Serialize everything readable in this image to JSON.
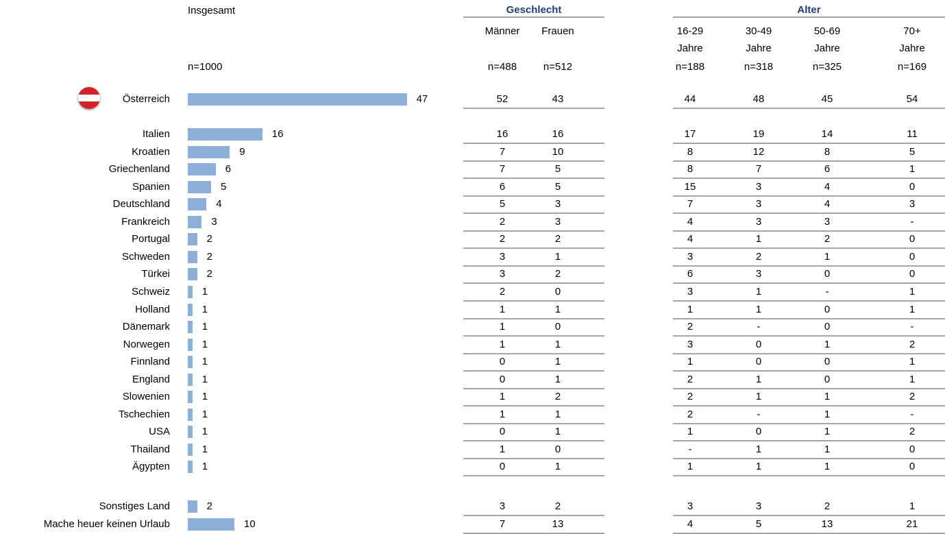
{
  "chart_data": {
    "type": "table",
    "overall": {
      "header": "Insgesamt",
      "n": "n=1000"
    },
    "groups": [
      {
        "title": "Geschlecht",
        "columns": [
          {
            "label": [
              "Männer"
            ],
            "n": "n=488"
          },
          {
            "label": [
              "Frauen"
            ],
            "n": "n=512"
          }
        ]
      },
      {
        "title": "Alter",
        "columns": [
          {
            "label": [
              "16-29",
              "Jahre"
            ],
            "n": "n=188"
          },
          {
            "label": [
              "30-49",
              "Jahre"
            ],
            "n": "n=318"
          },
          {
            "label": [
              "50-69",
              "Jahre"
            ],
            "n": "n=325"
          },
          {
            "label": [
              "70+",
              "Jahre"
            ],
            "n": "n=169"
          }
        ]
      }
    ],
    "rows": [
      {
        "label": "Österreich",
        "total": 47,
        "cells": [
          "52",
          "43",
          "44",
          "48",
          "45",
          "54"
        ],
        "flag": "austria-flag-icon"
      },
      {
        "label": "Italien",
        "total": 16,
        "cells": [
          "16",
          "16",
          "17",
          "19",
          "14",
          "11"
        ]
      },
      {
        "label": "Kroatien",
        "total": 9,
        "cells": [
          "7",
          "10",
          "8",
          "12",
          "8",
          "5"
        ]
      },
      {
        "label": "Griechenland",
        "total": 6,
        "cells": [
          "7",
          "5",
          "8",
          "7",
          "6",
          "1"
        ]
      },
      {
        "label": "Spanien",
        "total": 5,
        "cells": [
          "6",
          "5",
          "15",
          "3",
          "4",
          "0"
        ]
      },
      {
        "label": "Deutschland",
        "total": 4,
        "cells": [
          "5",
          "3",
          "7",
          "3",
          "4",
          "3"
        ]
      },
      {
        "label": "Frankreich",
        "total": 3,
        "cells": [
          "2",
          "3",
          "4",
          "3",
          "3",
          "-"
        ]
      },
      {
        "label": "Portugal",
        "total": 2,
        "cells": [
          "2",
          "2",
          "4",
          "1",
          "2",
          "0"
        ]
      },
      {
        "label": "Schweden",
        "total": 2,
        "cells": [
          "3",
          "1",
          "3",
          "2",
          "1",
          "0"
        ]
      },
      {
        "label": "Türkei",
        "total": 2,
        "cells": [
          "3",
          "2",
          "6",
          "3",
          "0",
          "0"
        ]
      },
      {
        "label": "Schweiz",
        "total": 1,
        "cells": [
          "2",
          "0",
          "3",
          "1",
          "-",
          "1"
        ]
      },
      {
        "label": "Holland",
        "total": 1,
        "cells": [
          "1",
          "1",
          "1",
          "1",
          "0",
          "1"
        ]
      },
      {
        "label": "Dänemark",
        "total": 1,
        "cells": [
          "1",
          "0",
          "2",
          "-",
          "0",
          "-"
        ]
      },
      {
        "label": "Norwegen",
        "total": 1,
        "cells": [
          "1",
          "1",
          "3",
          "0",
          "1",
          "2"
        ]
      },
      {
        "label": "Finnland",
        "total": 1,
        "cells": [
          "0",
          "1",
          "1",
          "0",
          "0",
          "1"
        ]
      },
      {
        "label": "England",
        "total": 1,
        "cells": [
          "0",
          "1",
          "2",
          "1",
          "0",
          "1"
        ]
      },
      {
        "label": "Slowenien",
        "total": 1,
        "cells": [
          "1",
          "2",
          "2",
          "1",
          "1",
          "2"
        ]
      },
      {
        "label": "Tschechien",
        "total": 1,
        "cells": [
          "1",
          "1",
          "2",
          "-",
          "1",
          "-"
        ]
      },
      {
        "label": "USA",
        "total": 1,
        "cells": [
          "0",
          "1",
          "1",
          "0",
          "1",
          "2"
        ]
      },
      {
        "label": "Thailand",
        "total": 1,
        "cells": [
          "1",
          "0",
          "-",
          "1",
          "1",
          "0"
        ]
      },
      {
        "label": "Ägypten",
        "total": 1,
        "cells": [
          "0",
          "1",
          "1",
          "1",
          "1",
          "0"
        ]
      },
      {
        "label": "Sonstiges Land",
        "total": 2,
        "cells": [
          "3",
          "2",
          "3",
          "3",
          "2",
          "1"
        ]
      },
      {
        "label": "Mache heuer keinen Urlaub",
        "total": 10,
        "cells": [
          "7",
          "13",
          "4",
          "5",
          "13",
          "21"
        ]
      }
    ],
    "colors": {
      "bar": "#8db0da",
      "group_title": "#1f3f7a",
      "rule": "#a6a6a6"
    }
  }
}
